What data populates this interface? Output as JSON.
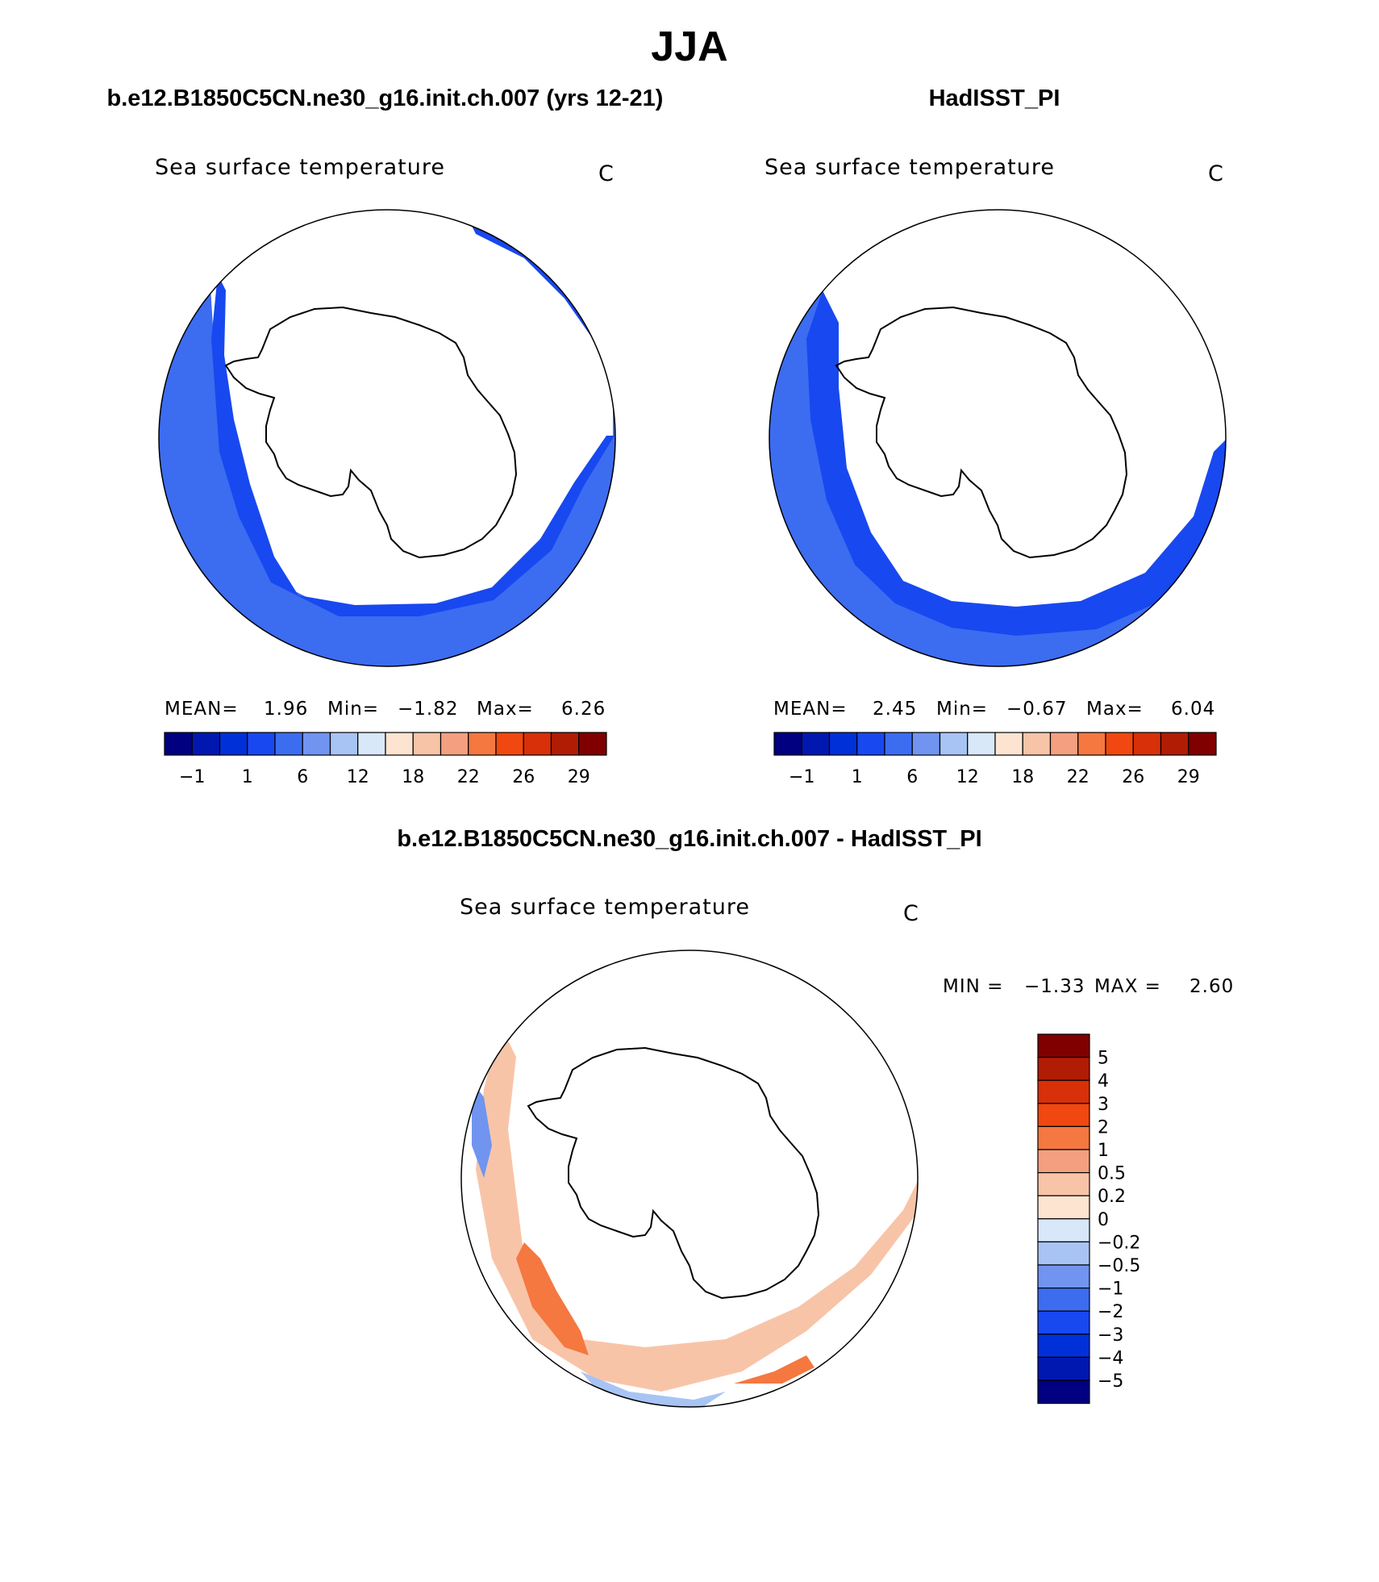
{
  "page": {
    "title": "JJA",
    "panel_left_title": "b.e12.B1850C5CN.ne30_g16.init.ch.007 (yrs 12-21)",
    "panel_right_title": "HadISST_PI",
    "diff_title": "b.e12.B1850C5CN.ne30_g16.init.ch.007 - HadISST_PI"
  },
  "colors": {
    "abs_scale": [
      "#000080",
      "#0018b0",
      "#0030d8",
      "#1848f0",
      "#3c6cf0",
      "#7094f0",
      "#a8c4f4",
      "#d8e8f8",
      "#fce4d0",
      "#f8c4a8",
      "#f4a080",
      "#f47840",
      "#f04810",
      "#d83008",
      "#b01c04",
      "#800000"
    ],
    "diff_scale": [
      "#000080",
      "#0018b0",
      "#0030d8",
      "#1848f0",
      "#3c6cf0",
      "#7094f0",
      "#a8c4f4",
      "#d8e8f8",
      "#fce4d0",
      "#f8c4a8",
      "#f4a080",
      "#f47840",
      "#f04810",
      "#d83008",
      "#b01c04",
      "#800000"
    ]
  },
  "chart_data": [
    {
      "type": "heatmap",
      "projection": "south-polar-stereographic",
      "panel": "left",
      "title": "Sea surface temperature",
      "units": "C",
      "stats": {
        "mean_label": "MEAN=",
        "mean": "1.96",
        "min_label": "Min=",
        "min": "−1.82",
        "max_label": "Max=",
        "max": "6.26"
      },
      "colorbar_ticks": [
        "−1",
        "1",
        "6",
        "12",
        "18",
        "22",
        "26",
        "29"
      ]
    },
    {
      "type": "heatmap",
      "projection": "south-polar-stereographic",
      "panel": "right",
      "title": "Sea surface temperature",
      "units": "C",
      "stats": {
        "mean_label": "MEAN=",
        "mean": "2.45",
        "min_label": "Min=",
        "min": "−0.67",
        "max_label": "Max=",
        "max": "6.04"
      },
      "colorbar_ticks": [
        "−1",
        "1",
        "6",
        "12",
        "18",
        "22",
        "26",
        "29"
      ]
    },
    {
      "type": "heatmap",
      "projection": "south-polar-stereographic",
      "panel": "difference",
      "title": "Sea surface temperature",
      "units": "C",
      "stats": {
        "min_label": "MIN =",
        "min": "−1.33",
        "max_label": "MAX =",
        "max": "2.60"
      },
      "colorbar_levels": [
        "5",
        "4",
        "3",
        "2",
        "1",
        "0.5",
        "0.2",
        "0",
        "−0.2",
        "−0.5",
        "−1",
        "−2",
        "−3",
        "−4",
        "−5"
      ]
    }
  ]
}
